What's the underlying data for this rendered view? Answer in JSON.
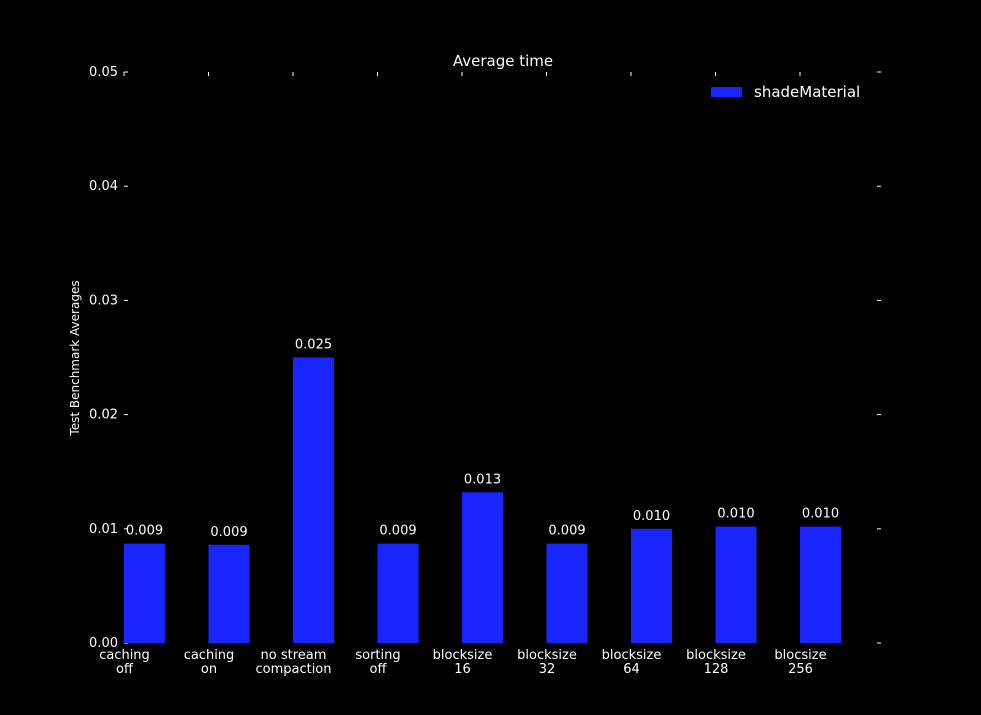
{
  "chart_data": {
    "type": "bar",
    "title": "Average time",
    "xlabel": "",
    "ylabel": "Test Benchmark Averages",
    "ylim": [
      0,
      0.05
    ],
    "yticks": [
      "0.00",
      "0.01",
      "0.02",
      "0.03",
      "0.04",
      "0.05"
    ],
    "categories": [
      [
        "caching",
        "off"
      ],
      [
        "caching",
        "on"
      ],
      [
        "no stream",
        "compaction"
      ],
      [
        "sorting",
        "off"
      ],
      [
        "blocksize",
        "16"
      ],
      [
        "blocksize",
        "32"
      ],
      [
        "blocksize",
        "64"
      ],
      [
        "blocksize",
        "128"
      ],
      [
        "blocsize",
        "256"
      ]
    ],
    "series": [
      {
        "name": "shadeMaterial",
        "color": "#1a26ff",
        "values": [
          0.0087,
          0.0086,
          0.025,
          0.0087,
          0.0132,
          0.0087,
          0.01,
          0.0102,
          0.0102
        ],
        "labels": [
          "0.009",
          "0.009",
          "0.025",
          "0.009",
          "0.013",
          "0.009",
          "0.010",
          "0.010",
          "0.010"
        ]
      }
    ],
    "legend_position": "top-right",
    "grid": false,
    "background": "#000000",
    "text_color": "#ffffff"
  }
}
